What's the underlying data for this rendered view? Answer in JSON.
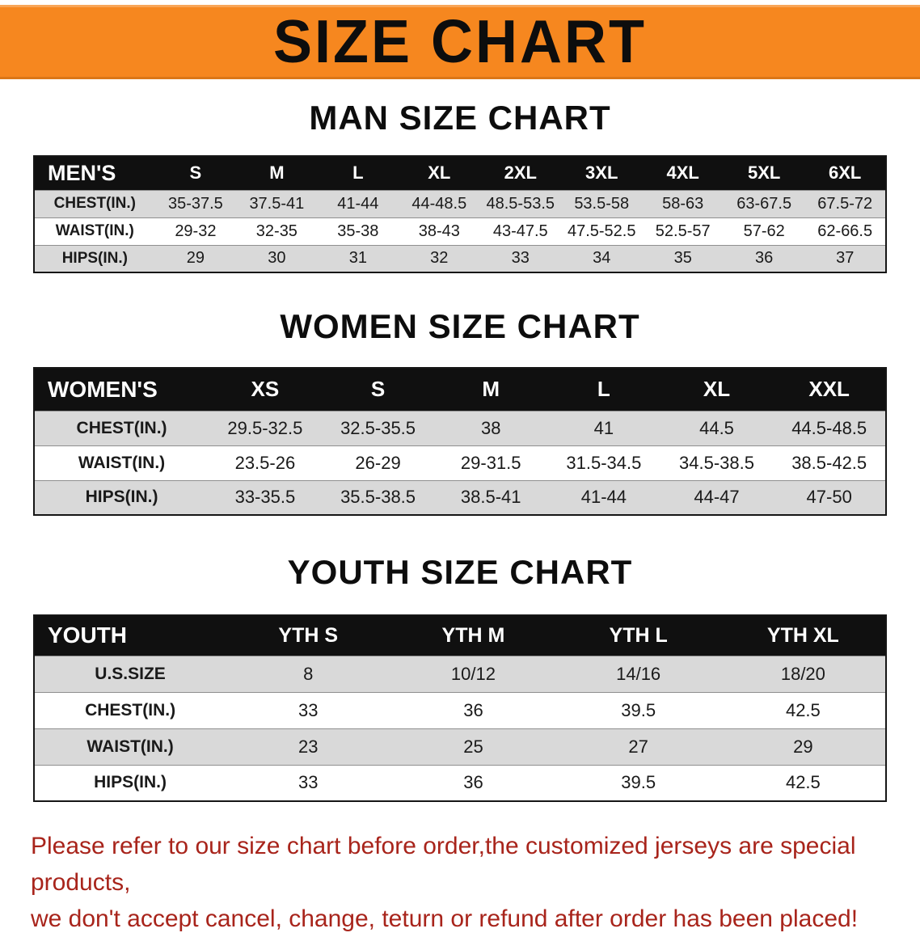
{
  "banner": {
    "title": "SIZE CHART"
  },
  "colors": {
    "banner_bg": "#f6871f",
    "table_header_bg": "#101010",
    "row_alt_bg": "#d9d9d9",
    "notice_red": "#a8241b"
  },
  "sections": [
    {
      "key": "men",
      "heading": "MAN SIZE CHART",
      "table": {
        "header": [
          "MEN'S",
          "S",
          "M",
          "L",
          "XL",
          "2XL",
          "3XL",
          "4XL",
          "5XL",
          "6XL"
        ],
        "rows": [
          [
            "CHEST(IN.)",
            "35-37.5",
            "37.5-41",
            "41-44",
            "44-48.5",
            "48.5-53.5",
            "53.5-58",
            "58-63",
            "63-67.5",
            "67.5-72"
          ],
          [
            "WAIST(IN.)",
            "29-32",
            "32-35",
            "35-38",
            "38-43",
            "43-47.5",
            "47.5-52.5",
            "52.5-57",
            "57-62",
            "62-66.5"
          ],
          [
            "HIPS(IN.)",
            "29",
            "30",
            "31",
            "32",
            "33",
            "34",
            "35",
            "36",
            "37"
          ]
        ]
      }
    },
    {
      "key": "women",
      "heading": "WOMEN SIZE CHART",
      "table": {
        "header": [
          "WOMEN'S",
          "XS",
          "S",
          "M",
          "L",
          "XL",
          "XXL"
        ],
        "rows": [
          [
            "CHEST(IN.)",
            "29.5-32.5",
            "32.5-35.5",
            "38",
            "41",
            "44.5",
            "44.5-48.5"
          ],
          [
            "WAIST(IN.)",
            "23.5-26",
            "26-29",
            "29-31.5",
            "31.5-34.5",
            "34.5-38.5",
            "38.5-42.5"
          ],
          [
            "HIPS(IN.)",
            "33-35.5",
            "35.5-38.5",
            "38.5-41",
            "41-44",
            "44-47",
            "47-50"
          ]
        ]
      }
    },
    {
      "key": "youth",
      "heading": "YOUTH SIZE CHART",
      "table": {
        "header": [
          "YOUTH",
          "YTH S",
          "YTH M",
          "YTH L",
          "YTH XL"
        ],
        "rows": [
          [
            "U.S.SIZE",
            "8",
            "10/12",
            "14/16",
            "18/20"
          ],
          [
            "CHEST(IN.)",
            "33",
            "36",
            "39.5",
            "42.5"
          ],
          [
            "WAIST(IN.)",
            "23",
            "25",
            "27",
            "29"
          ],
          [
            "HIPS(IN.)",
            "33",
            "36",
            "39.5",
            "42.5"
          ]
        ]
      }
    }
  ],
  "footer": {
    "line1": "Please refer to our size chart before order,the customized jerseys are special products,",
    "line2": "we don't accept cancel, change, teturn or refund after order has been placed!"
  }
}
